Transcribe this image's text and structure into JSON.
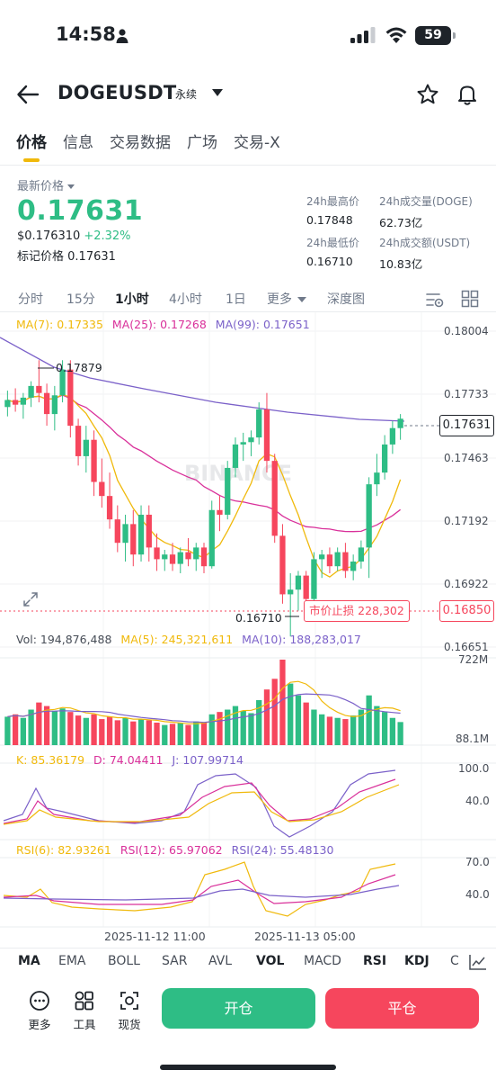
{
  "status_bar": {
    "time": "14:58",
    "battery": "59"
  },
  "header": {
    "symbol": "DOGEUSDT",
    "contract_type": "永续"
  },
  "tabs": [
    {
      "label": "价格",
      "active": true
    },
    {
      "label": "信息",
      "active": false
    },
    {
      "label": "交易数据",
      "active": false
    },
    {
      "label": "广场",
      "active": false
    },
    {
      "label": "交易-X",
      "active": false
    }
  ],
  "ticker": {
    "latest_label": "最新价格",
    "last_price": "0.17631",
    "usd_price": "$0.176310",
    "change_pct": "+2.32%",
    "mark_label": "标记价格",
    "mark_price": "0.17631",
    "stats": {
      "high_label": "24h最高价",
      "high": "0.17848",
      "volume_label": "24h成交量(DOGE)",
      "volume": "62.73亿",
      "low_label": "24h最低价",
      "low": "0.16710",
      "turnover_label": "24h成交额(USDT)",
      "turnover": "10.83亿"
    }
  },
  "intervals": {
    "items": [
      "分时",
      "15分",
      "1小时",
      "4小时",
      "1日",
      "更多"
    ],
    "active": "1小时",
    "depth": "深度图"
  },
  "ma_legend": {
    "ma7": "MA(7): 0.17335",
    "ma25": "MA(25): 0.17268",
    "ma99": "MA(99): 0.17651"
  },
  "price_axis": [
    "0.18004",
    "0.17733",
    "0.17463",
    "0.17192",
    "0.16922",
    "0.16651"
  ],
  "markers": {
    "current_price": "0.17631",
    "high_mark": "0.17879",
    "low_mark": "0.16710",
    "stop_order": "市价止损 228,302",
    "stop_price": "0.16850"
  },
  "vol_legend": {
    "vol": "Vol: 194,876,488",
    "ma5": "MA(5): 245,321,611",
    "ma10": "MA(10): 188,283,017"
  },
  "vol_axis": [
    "722M",
    "88.1M"
  ],
  "kdj_legend": {
    "k": "K: 85.36179",
    "d": "D: 74.04411",
    "j": "J: 107.99714"
  },
  "kdj_axis": [
    "100.0",
    "40.0"
  ],
  "rsi_legend": {
    "rsi6": "RSI(6): 82.93261",
    "rsi12": "RSI(12): 65.97062",
    "rsi24": "RSI(24): 55.48130"
  },
  "rsi_axis": [
    "70.0",
    "40.0"
  ],
  "time_axis": [
    "2025-11-12 11:00",
    "2025-11-13 05:00"
  ],
  "watermark": "BINANCE",
  "indicator_tabs": [
    {
      "label": "MA",
      "on": true
    },
    {
      "label": "EMA",
      "on": false
    },
    {
      "label": "BOLL",
      "on": false
    },
    {
      "label": "SAR",
      "on": false
    },
    {
      "label": "AVL",
      "on": false
    },
    {
      "label": "VOL",
      "on": true
    },
    {
      "label": "MACD",
      "on": false
    },
    {
      "label": "RSI",
      "on": true
    },
    {
      "label": "KDJ",
      "on": true
    },
    {
      "label": "C",
      "on": false
    }
  ],
  "actions": {
    "more": "更多",
    "tools": "工具",
    "spot": "现货",
    "open": "开仓",
    "close": "平仓"
  },
  "colors": {
    "up": "#2ebd85",
    "down": "#f6465d",
    "accent": "#f0b90b",
    "ma7": "#f0b90b",
    "ma25": "#d9309a",
    "ma99": "#7b61c9"
  },
  "chart_data": {
    "type": "candlestick",
    "interval": "1h",
    "ohlc": [
      [
        0.1768,
        0.1775,
        0.1764,
        0.1771
      ],
      [
        0.1771,
        0.1776,
        0.1766,
        0.1769
      ],
      [
        0.1769,
        0.1774,
        0.1763,
        0.1772
      ],
      [
        0.1772,
        0.1779,
        0.1768,
        0.1777
      ],
      [
        0.1777,
        0.1788,
        0.177,
        0.1774
      ],
      [
        0.1774,
        0.1778,
        0.176,
        0.1765
      ],
      [
        0.1765,
        0.1777,
        0.1758,
        0.1773
      ],
      [
        0.1773,
        0.1788,
        0.177,
        0.1784
      ],
      [
        0.1784,
        0.1788,
        0.1755,
        0.176
      ],
      [
        0.176,
        0.1763,
        0.1743,
        0.1747
      ],
      [
        0.1747,
        0.176,
        0.174,
        0.1754
      ],
      [
        0.1754,
        0.1758,
        0.173,
        0.1736
      ],
      [
        0.1736,
        0.1746,
        0.1725,
        0.173
      ],
      [
        0.173,
        0.174,
        0.1716,
        0.172
      ],
      [
        0.172,
        0.1726,
        0.1706,
        0.171
      ],
      [
        0.171,
        0.1722,
        0.1702,
        0.1718
      ],
      [
        0.1718,
        0.1724,
        0.17,
        0.1705
      ],
      [
        0.1705,
        0.1726,
        0.1702,
        0.1722
      ],
      [
        0.1722,
        0.1726,
        0.1702,
        0.1708
      ],
      [
        0.1708,
        0.1714,
        0.1698,
        0.1703
      ],
      [
        0.1703,
        0.1707,
        0.1698,
        0.1705
      ],
      [
        0.1705,
        0.171,
        0.1698,
        0.1701
      ],
      [
        0.1701,
        0.1708,
        0.1697,
        0.1706
      ],
      [
        0.1706,
        0.1712,
        0.17,
        0.1703
      ],
      [
        0.1703,
        0.171,
        0.1698,
        0.1708
      ],
      [
        0.1708,
        0.171,
        0.1697,
        0.17
      ],
      [
        0.17,
        0.1728,
        0.1699,
        0.1724
      ],
      [
        0.1724,
        0.173,
        0.1715,
        0.1722
      ],
      [
        0.1722,
        0.1745,
        0.172,
        0.1742
      ],
      [
        0.1742,
        0.1755,
        0.1738,
        0.1752
      ],
      [
        0.1752,
        0.1757,
        0.1745,
        0.1753
      ],
      [
        0.1753,
        0.1758,
        0.1747,
        0.1755
      ],
      [
        0.1755,
        0.177,
        0.1752,
        0.1767
      ],
      [
        0.1767,
        0.1774,
        0.174,
        0.1745
      ],
      [
        0.1745,
        0.1748,
        0.171,
        0.1713
      ],
      [
        0.1713,
        0.1718,
        0.1684,
        0.1688
      ],
      [
        0.1688,
        0.1697,
        0.167,
        0.169
      ],
      [
        0.169,
        0.1698,
        0.1681,
        0.1696
      ],
      [
        0.1696,
        0.1698,
        0.1684,
        0.1686
      ],
      [
        0.1686,
        0.1706,
        0.1684,
        0.1703
      ],
      [
        0.1703,
        0.1707,
        0.1695,
        0.1705
      ],
      [
        0.1705,
        0.1708,
        0.1697,
        0.17
      ],
      [
        0.17,
        0.1708,
        0.1698,
        0.1706
      ],
      [
        0.1706,
        0.171,
        0.1695,
        0.1698
      ],
      [
        0.1698,
        0.1705,
        0.1694,
        0.1702
      ],
      [
        0.1702,
        0.1711,
        0.1699,
        0.1708
      ],
      [
        0.1708,
        0.1738,
        0.1695,
        0.1735
      ],
      [
        0.1735,
        0.1748,
        0.173,
        0.174
      ],
      [
        0.174,
        0.1756,
        0.1737,
        0.1752
      ],
      [
        0.1752,
        0.1762,
        0.1748,
        0.1759
      ],
      [
        0.1759,
        0.1765,
        0.1754,
        0.1763
      ]
    ],
    "volume_m": [
      240,
      260,
      230,
      300,
      360,
      330,
      290,
      310,
      280,
      250,
      230,
      260,
      220,
      240,
      210,
      230,
      200,
      220,
      210,
      190,
      170,
      180,
      190,
      170,
      200,
      190,
      260,
      280,
      300,
      330,
      290,
      270,
      380,
      470,
      560,
      722,
      520,
      420,
      360,
      300,
      260,
      240,
      230,
      220,
      250,
      300,
      420,
      330,
      280,
      230,
      195
    ],
    "price_axis_range": [
      0.16651,
      0.18004
    ]
  }
}
